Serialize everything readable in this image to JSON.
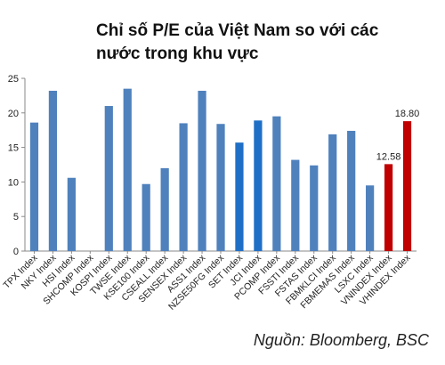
{
  "title_line1": "Chỉ số P/E của Việt Nam so với các",
  "title_line2": "nước trong khu vực",
  "source": "Nguồn: Bloomberg, BSC",
  "chart_data": {
    "type": "bar",
    "categories": [
      "TPX Index",
      "NKY Index",
      "HSI Index",
      "SHCOMP Index",
      "KOSPI Index",
      "TWSE Index",
      "KSE100 Index",
      "CSEALL Index",
      "SENSEX Index",
      "ASS1 Index",
      "NZSE50FG Index",
      "SET Index",
      "JCI Index",
      "PCOMP Index",
      "FSSTI Index",
      "FSTAS Index",
      "FBMKLCI Index",
      "FBMEMAS Index",
      "LSXC Index",
      "VNINDEX Index",
      "VHINDEX Index"
    ],
    "values": [
      18.6,
      23.2,
      10.6,
      0,
      21.0,
      23.5,
      9.7,
      12.0,
      18.5,
      23.2,
      18.4,
      15.7,
      18.9,
      19.5,
      13.2,
      12.4,
      16.9,
      17.4,
      9.5,
      12.58,
      18.8
    ],
    "colors": [
      "#4f81bd",
      "#4f81bd",
      "#4f81bd",
      "#4f81bd",
      "#4f81bd",
      "#4f81bd",
      "#4f81bd",
      "#4f81bd",
      "#4f81bd",
      "#4f81bd",
      "#4f81bd",
      "#1f6fc6",
      "#1f6fc6",
      "#4f81bd",
      "#4f81bd",
      "#4f81bd",
      "#4f81bd",
      "#4f81bd",
      "#4f81bd",
      "#c00000",
      "#c00000"
    ],
    "data_labels": [
      "",
      "",
      "",
      "",
      "",
      "",
      "",
      "",
      "",
      "",
      "",
      "",
      "",
      "",
      "",
      "",
      "",
      "",
      "",
      "12.58",
      "18.80"
    ],
    "ylim": [
      0,
      25
    ],
    "yticks": [
      0,
      5,
      10,
      15,
      20,
      25
    ],
    "grid": false,
    "title": "",
    "xlabel": "",
    "ylabel": ""
  }
}
